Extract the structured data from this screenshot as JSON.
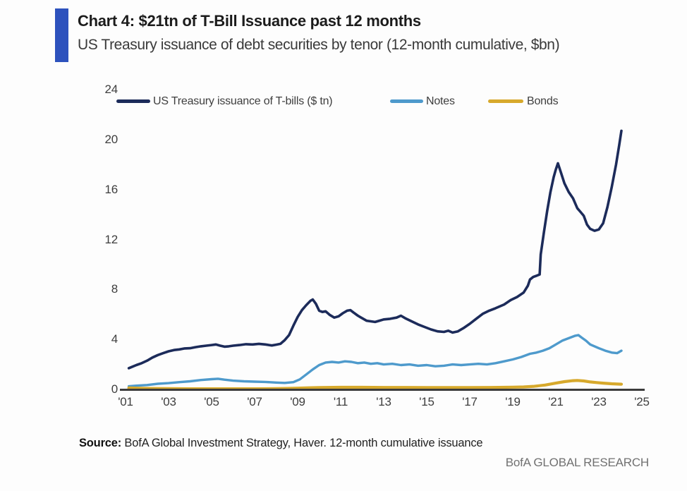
{
  "header": {
    "title": "Chart 4: $21tn of T-Bill Issuance past 12 months",
    "subtitle": "US Treasury issuance of debt securities by tenor (12-month cumulative, $bn)"
  },
  "footer": {
    "source_label": "Source:",
    "source_text": " BofA Global Investment Strategy, Haver. 12-month cumulative issuance",
    "brand": "BofA GLOBAL RESEARCH"
  },
  "colors": {
    "accent_bar": "#2d52bd",
    "tbills_line": "#1c2b5a",
    "notes_line": "#4e9acc",
    "bonds_line": "#d7a92c",
    "axis_line": "#3c3c3c",
    "tick_text": "#3e3e3e"
  },
  "chart_data": {
    "type": "line",
    "title": "Chart 4: $21tn of T-Bill Issuance past 12 months",
    "subtitle": "US Treasury issuance of debt securities by tenor (12-month cumulative, $bn)",
    "xlabel": "",
    "ylabel": "",
    "grid": false,
    "legend_position": "top",
    "xlim": [
      2001,
      2025
    ],
    "ylim": [
      0,
      24
    ],
    "yticks": [
      0,
      4,
      8,
      12,
      16,
      20,
      24
    ],
    "xticks": [
      2001,
      2003,
      2005,
      2007,
      2009,
      2011,
      2013,
      2015,
      2017,
      2019,
      2021,
      2023,
      2025
    ],
    "xtick_labels": [
      "'01",
      "'03",
      "'05",
      "'07",
      "'09",
      "'11",
      "'13",
      "'15",
      "'17",
      "'19",
      "'21",
      "'23",
      "'25"
    ],
    "series": [
      {
        "id": "tbills",
        "name": "US Treasury issuance of T-bills ($ tn)",
        "color": "#1c2b5a",
        "points": [
          [
            2001.15,
            1.7
          ],
          [
            2001.3,
            1.8
          ],
          [
            2001.5,
            1.95
          ],
          [
            2001.75,
            2.1
          ],
          [
            2002.0,
            2.3
          ],
          [
            2002.25,
            2.55
          ],
          [
            2002.5,
            2.75
          ],
          [
            2002.75,
            2.9
          ],
          [
            2003.0,
            3.05
          ],
          [
            2003.25,
            3.15
          ],
          [
            2003.5,
            3.2
          ],
          [
            2003.75,
            3.28
          ],
          [
            2004.0,
            3.3
          ],
          [
            2004.25,
            3.38
          ],
          [
            2004.5,
            3.45
          ],
          [
            2004.75,
            3.5
          ],
          [
            2005.0,
            3.55
          ],
          [
            2005.2,
            3.6
          ],
          [
            2005.4,
            3.5
          ],
          [
            2005.6,
            3.42
          ],
          [
            2005.8,
            3.45
          ],
          [
            2006.0,
            3.5
          ],
          [
            2006.3,
            3.55
          ],
          [
            2006.6,
            3.62
          ],
          [
            2006.9,
            3.6
          ],
          [
            2007.2,
            3.65
          ],
          [
            2007.5,
            3.6
          ],
          [
            2007.8,
            3.52
          ],
          [
            2008.0,
            3.58
          ],
          [
            2008.2,
            3.65
          ],
          [
            2008.4,
            3.95
          ],
          [
            2008.6,
            4.35
          ],
          [
            2008.8,
            5.1
          ],
          [
            2009.0,
            5.8
          ],
          [
            2009.2,
            6.35
          ],
          [
            2009.4,
            6.75
          ],
          [
            2009.6,
            7.1
          ],
          [
            2009.7,
            7.2
          ],
          [
            2009.85,
            6.85
          ],
          [
            2010.0,
            6.3
          ],
          [
            2010.15,
            6.2
          ],
          [
            2010.3,
            6.25
          ],
          [
            2010.5,
            5.95
          ],
          [
            2010.7,
            5.75
          ],
          [
            2010.9,
            5.85
          ],
          [
            2011.1,
            6.1
          ],
          [
            2011.3,
            6.3
          ],
          [
            2011.45,
            6.35
          ],
          [
            2011.6,
            6.15
          ],
          [
            2011.8,
            5.9
          ],
          [
            2012.0,
            5.7
          ],
          [
            2012.2,
            5.5
          ],
          [
            2012.4,
            5.45
          ],
          [
            2012.6,
            5.4
          ],
          [
            2012.8,
            5.5
          ],
          [
            2013.0,
            5.6
          ],
          [
            2013.3,
            5.65
          ],
          [
            2013.6,
            5.75
          ],
          [
            2013.8,
            5.9
          ],
          [
            2014.0,
            5.7
          ],
          [
            2014.3,
            5.45
          ],
          [
            2014.6,
            5.2
          ],
          [
            2014.9,
            5.0
          ],
          [
            2015.2,
            4.8
          ],
          [
            2015.5,
            4.65
          ],
          [
            2015.8,
            4.6
          ],
          [
            2016.0,
            4.7
          ],
          [
            2016.2,
            4.55
          ],
          [
            2016.45,
            4.65
          ],
          [
            2016.7,
            4.9
          ],
          [
            2017.0,
            5.25
          ],
          [
            2017.3,
            5.65
          ],
          [
            2017.6,
            6.05
          ],
          [
            2017.9,
            6.3
          ],
          [
            2018.2,
            6.5
          ],
          [
            2018.6,
            6.8
          ],
          [
            2018.9,
            7.15
          ],
          [
            2019.2,
            7.4
          ],
          [
            2019.5,
            7.75
          ],
          [
            2019.7,
            8.3
          ],
          [
            2019.8,
            8.8
          ],
          [
            2019.95,
            9.0
          ],
          [
            2020.1,
            9.1
          ],
          [
            2020.25,
            9.2
          ],
          [
            2020.3,
            10.8
          ],
          [
            2020.45,
            12.6
          ],
          [
            2020.6,
            14.3
          ],
          [
            2020.75,
            15.8
          ],
          [
            2020.9,
            17.0
          ],
          [
            2021.0,
            17.6
          ],
          [
            2021.1,
            18.1
          ],
          [
            2021.25,
            17.3
          ],
          [
            2021.4,
            16.5
          ],
          [
            2021.6,
            15.8
          ],
          [
            2021.8,
            15.3
          ],
          [
            2022.0,
            14.5
          ],
          [
            2022.15,
            14.2
          ],
          [
            2022.3,
            13.9
          ],
          [
            2022.45,
            13.2
          ],
          [
            2022.6,
            12.85
          ],
          [
            2022.8,
            12.7
          ],
          [
            2023.0,
            12.8
          ],
          [
            2023.2,
            13.3
          ],
          [
            2023.4,
            14.6
          ],
          [
            2023.6,
            16.2
          ],
          [
            2023.8,
            18.0
          ],
          [
            2023.95,
            19.6
          ],
          [
            2024.05,
            20.7
          ]
        ]
      },
      {
        "id": "notes",
        "name": "Notes",
        "color": "#4e9acc",
        "points": [
          [
            2001.15,
            0.25
          ],
          [
            2001.5,
            0.3
          ],
          [
            2002.0,
            0.35
          ],
          [
            2002.5,
            0.45
          ],
          [
            2003.0,
            0.5
          ],
          [
            2003.5,
            0.58
          ],
          [
            2004.0,
            0.65
          ],
          [
            2004.5,
            0.75
          ],
          [
            2005.0,
            0.82
          ],
          [
            2005.3,
            0.85
          ],
          [
            2005.6,
            0.78
          ],
          [
            2006.0,
            0.7
          ],
          [
            2006.5,
            0.65
          ],
          [
            2007.0,
            0.62
          ],
          [
            2007.5,
            0.6
          ],
          [
            2008.0,
            0.55
          ],
          [
            2008.4,
            0.52
          ],
          [
            2008.8,
            0.58
          ],
          [
            2009.1,
            0.8
          ],
          [
            2009.4,
            1.2
          ],
          [
            2009.7,
            1.6
          ],
          [
            2010.0,
            1.95
          ],
          [
            2010.3,
            2.15
          ],
          [
            2010.6,
            2.2
          ],
          [
            2010.9,
            2.15
          ],
          [
            2011.2,
            2.25
          ],
          [
            2011.5,
            2.2
          ],
          [
            2011.8,
            2.1
          ],
          [
            2012.1,
            2.15
          ],
          [
            2012.4,
            2.05
          ],
          [
            2012.7,
            2.1
          ],
          [
            2013.0,
            2.0
          ],
          [
            2013.4,
            2.05
          ],
          [
            2013.8,
            1.95
          ],
          [
            2014.2,
            2.0
          ],
          [
            2014.6,
            1.9
          ],
          [
            2015.0,
            1.95
          ],
          [
            2015.4,
            1.85
          ],
          [
            2015.8,
            1.9
          ],
          [
            2016.2,
            2.0
          ],
          [
            2016.6,
            1.95
          ],
          [
            2017.0,
            2.0
          ],
          [
            2017.4,
            2.05
          ],
          [
            2017.8,
            2.0
          ],
          [
            2018.2,
            2.1
          ],
          [
            2018.6,
            2.25
          ],
          [
            2019.0,
            2.4
          ],
          [
            2019.4,
            2.6
          ],
          [
            2019.8,
            2.85
          ],
          [
            2020.1,
            2.95
          ],
          [
            2020.4,
            3.1
          ],
          [
            2020.7,
            3.3
          ],
          [
            2021.0,
            3.6
          ],
          [
            2021.3,
            3.9
          ],
          [
            2021.6,
            4.1
          ],
          [
            2021.9,
            4.3
          ],
          [
            2022.05,
            4.35
          ],
          [
            2022.2,
            4.15
          ],
          [
            2022.4,
            3.9
          ],
          [
            2022.6,
            3.6
          ],
          [
            2022.8,
            3.45
          ],
          [
            2023.0,
            3.3
          ],
          [
            2023.3,
            3.1
          ],
          [
            2023.6,
            2.95
          ],
          [
            2023.85,
            2.9
          ],
          [
            2024.05,
            3.1
          ]
        ]
      },
      {
        "id": "bonds",
        "name": "Bonds",
        "color": "#d7a92c",
        "points": [
          [
            2001.15,
            0.12
          ],
          [
            2001.5,
            0.1
          ],
          [
            2002.0,
            0.08
          ],
          [
            2003.0,
            0.06
          ],
          [
            2004.0,
            0.05
          ],
          [
            2005.0,
            0.05
          ],
          [
            2006.0,
            0.05
          ],
          [
            2007.0,
            0.05
          ],
          [
            2008.0,
            0.06
          ],
          [
            2008.5,
            0.08
          ],
          [
            2009.0,
            0.1
          ],
          [
            2009.5,
            0.13
          ],
          [
            2010.0,
            0.15
          ],
          [
            2011.0,
            0.17
          ],
          [
            2012.0,
            0.17
          ],
          [
            2013.0,
            0.16
          ],
          [
            2014.0,
            0.16
          ],
          [
            2015.0,
            0.15
          ],
          [
            2016.0,
            0.15
          ],
          [
            2017.0,
            0.15
          ],
          [
            2018.0,
            0.16
          ],
          [
            2019.0,
            0.18
          ],
          [
            2019.5,
            0.2
          ],
          [
            2020.0,
            0.25
          ],
          [
            2020.5,
            0.35
          ],
          [
            2021.0,
            0.5
          ],
          [
            2021.4,
            0.62
          ],
          [
            2021.8,
            0.7
          ],
          [
            2022.0,
            0.72
          ],
          [
            2022.3,
            0.68
          ],
          [
            2022.6,
            0.6
          ],
          [
            2022.9,
            0.55
          ],
          [
            2023.2,
            0.5
          ],
          [
            2023.6,
            0.45
          ],
          [
            2024.05,
            0.42
          ]
        ]
      }
    ]
  }
}
